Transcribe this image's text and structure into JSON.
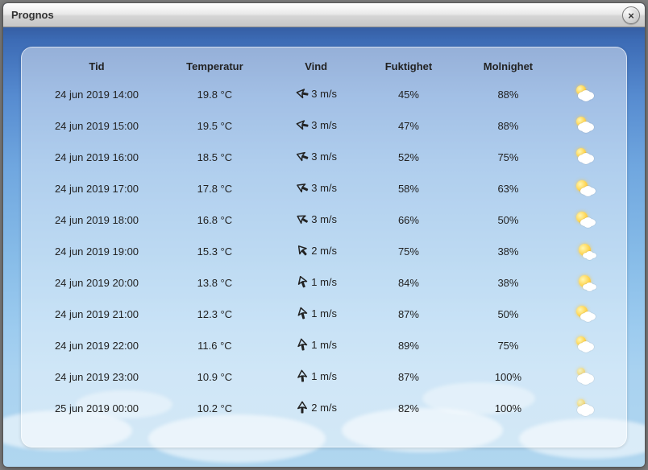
{
  "window": {
    "title": "Prognos",
    "close_glyph": "×"
  },
  "table": {
    "columns": [
      "Tid",
      "Temperatur",
      "Vind",
      "Fuktighet",
      "Molnighet",
      ""
    ],
    "wind_unit": "m/s",
    "rows": [
      {
        "time": "24 jun 2019 14:00",
        "temp": "19.8 °C",
        "wind_speed": "3 m/s",
        "wind_dir": 280,
        "humidity": "45%",
        "cloud": "88%",
        "icon": "mostly"
      },
      {
        "time": "24 jun 2019 15:00",
        "temp": "19.5 °C",
        "wind_speed": "3 m/s",
        "wind_dir": 280,
        "humidity": "47%",
        "cloud": "88%",
        "icon": "mostly"
      },
      {
        "time": "24 jun 2019 16:00",
        "temp": "18.5 °C",
        "wind_speed": "3 m/s",
        "wind_dir": 290,
        "humidity": "52%",
        "cloud": "75%",
        "icon": "mostly"
      },
      {
        "time": "24 jun 2019 17:00",
        "temp": "17.8 °C",
        "wind_speed": "3 m/s",
        "wind_dir": 295,
        "humidity": "58%",
        "cloud": "63%",
        "icon": "partly"
      },
      {
        "time": "24 jun 2019 18:00",
        "temp": "16.8 °C",
        "wind_speed": "3 m/s",
        "wind_dir": 300,
        "humidity": "66%",
        "cloud": "50%",
        "icon": "partly"
      },
      {
        "time": "24 jun 2019 19:00",
        "temp": "15.3 °C",
        "wind_speed": "2 m/s",
        "wind_dir": 320,
        "humidity": "75%",
        "cloud": "38%",
        "icon": "sun"
      },
      {
        "time": "24 jun 2019 20:00",
        "temp": "13.8 °C",
        "wind_speed": "1 m/s",
        "wind_dir": 340,
        "humidity": "84%",
        "cloud": "38%",
        "icon": "sun"
      },
      {
        "time": "24 jun 2019 21:00",
        "temp": "12.3 °C",
        "wind_speed": "1 m/s",
        "wind_dir": 345,
        "humidity": "87%",
        "cloud": "50%",
        "icon": "partly"
      },
      {
        "time": "24 jun 2019 22:00",
        "temp": "11.6 °C",
        "wind_speed": "1 m/s",
        "wind_dir": 350,
        "humidity": "89%",
        "cloud": "75%",
        "icon": "mostly"
      },
      {
        "time": "24 jun 2019 23:00",
        "temp": "10.9 °C",
        "wind_speed": "1 m/s",
        "wind_dir": 355,
        "humidity": "87%",
        "cloud": "100%",
        "icon": "over2"
      },
      {
        "time": "25 jun 2019 00:00",
        "temp": "10.2 °C",
        "wind_speed": "2 m/s",
        "wind_dir": 0,
        "humidity": "82%",
        "cloud": "100%",
        "icon": "over2"
      }
    ]
  },
  "colors": {
    "title_bg_top": "#fefefe",
    "title_bg_bottom": "#c6c6c6",
    "sky_top": "#2a4785",
    "sky_bottom": "#b0d6ef",
    "panel_bg": "rgba(255,255,255,0.45)",
    "text": "#222222",
    "arrow": "#222222"
  }
}
